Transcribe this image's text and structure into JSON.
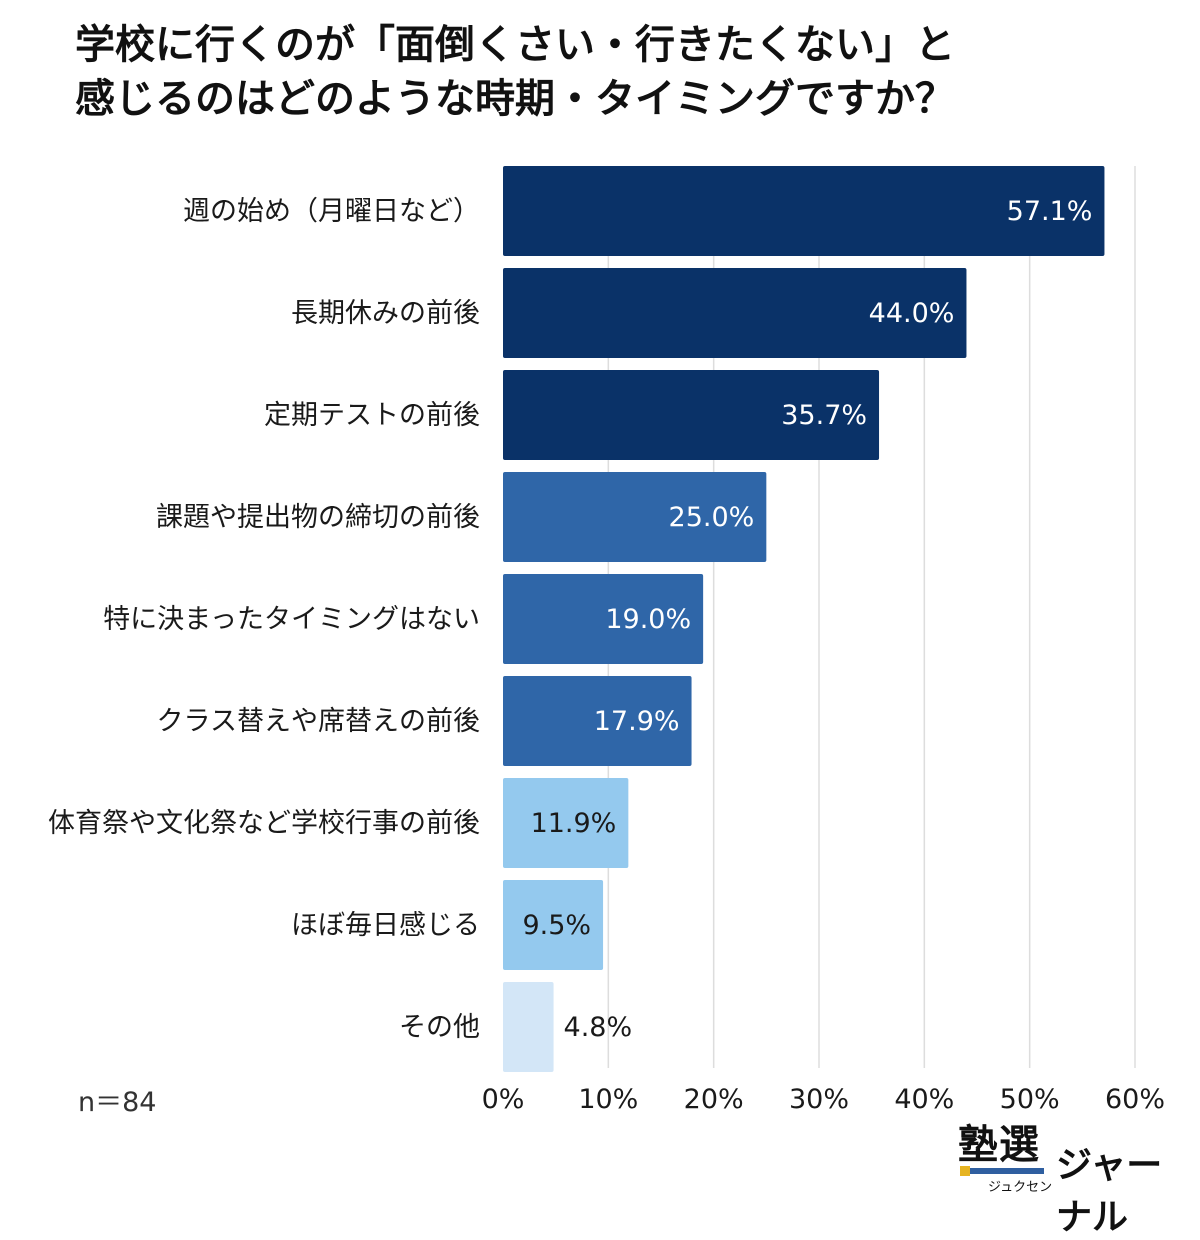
{
  "title": {
    "line1": "学校に行くのが「面倒くさい・行きたくない」と",
    "line2": "感じるのはどのような時期・タイミングですか？"
  },
  "note": "n＝84",
  "logo": {
    "main": "塾選",
    "kana": "ジュクセン",
    "sub": "ジャーナル"
  },
  "chart_data": {
    "type": "bar",
    "orientation": "horizontal",
    "categories": [
      "週の始め（月曜日など）",
      "長期休みの前後",
      "定期テストの前後",
      "課題や提出物の締切の前後",
      "特に決まったタイミングはない",
      "クラス替えや席替えの前後",
      "体育祭や文化祭など学校行事の前後",
      "ほぼ毎日感じる",
      "その他"
    ],
    "values": [
      57.1,
      44.0,
      35.7,
      25.0,
      19.0,
      17.9,
      11.9,
      9.5,
      4.8
    ],
    "value_labels": [
      "57.1%",
      "44.0%",
      "35.7%",
      "25.0%",
      "19.0%",
      "17.9%",
      "11.9%",
      "9.5%",
      "4.8%"
    ],
    "bar_colors": [
      "#0a3268",
      "#0a3268",
      "#0a3268",
      "#2f66a8",
      "#2f66a8",
      "#2f66a8",
      "#94c9ee",
      "#94c9ee",
      "#d3e6f7"
    ],
    "label_colors": [
      "#ffffff",
      "#ffffff",
      "#ffffff",
      "#ffffff",
      "#ffffff",
      "#ffffff",
      "#1a1a1a",
      "#1a1a1a",
      "#1a1a1a"
    ],
    "xlim": [
      0,
      60
    ],
    "xticks": [
      0,
      10,
      20,
      30,
      40,
      50,
      60
    ],
    "xtick_labels": [
      "0%",
      "10%",
      "20%",
      "30%",
      "40%",
      "50%",
      "60%"
    ],
    "grid": true,
    "grid_color": "#dddddd",
    "legend": "none"
  }
}
